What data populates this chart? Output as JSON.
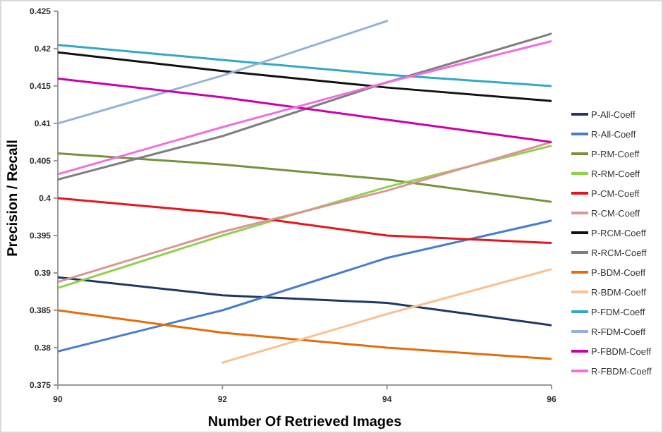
{
  "chart_data": {
    "type": "line",
    "xlabel": "Number Of Retrieved Images",
    "ylabel": "Precision / Recall",
    "x": [
      90,
      92,
      94,
      96
    ],
    "xlim": [
      90,
      96
    ],
    "xticks": [
      90,
      92,
      94,
      96
    ],
    "ylim": [
      0.375,
      0.425
    ],
    "yticks": [
      0.375,
      0.38,
      0.385,
      0.39,
      0.395,
      0.4,
      0.405,
      0.41,
      0.415,
      0.42,
      0.425
    ],
    "grid": false,
    "legend": "right",
    "marker": "none",
    "line_style": "solid",
    "series": [
      {
        "name": "P-All-Coeff",
        "color": "#1f3864",
        "values": [
          0.3894,
          0.387,
          0.386,
          0.383
        ]
      },
      {
        "name": "R-All-Coeff",
        "color": "#4a7ec8",
        "values": [
          0.3795,
          0.385,
          0.392,
          0.397
        ]
      },
      {
        "name": "P-RM-Coeff",
        "color": "#76923c",
        "values": [
          0.406,
          0.4045,
          0.4025,
          0.3995
        ]
      },
      {
        "name": "R-RM-Coeff",
        "color": "#92d050",
        "values": [
          0.388,
          0.395,
          0.4015,
          0.407
        ]
      },
      {
        "name": "P-CM-Coeff",
        "color": "#e8141b",
        "values": [
          0.4,
          0.398,
          0.395,
          0.394
        ]
      },
      {
        "name": "R-CM-Coeff",
        "color": "#d99694",
        "values": [
          0.3888,
          0.3955,
          0.401,
          0.4075
        ]
      },
      {
        "name": "P-RCM-Coeff",
        "color": "#111111",
        "values": [
          0.4195,
          0.417,
          0.4148,
          0.413
        ]
      },
      {
        "name": "R-RCM-Coeff",
        "color": "#7f7f7f",
        "values": [
          0.4025,
          0.4083,
          0.4155,
          0.422
        ]
      },
      {
        "name": "P-BDM-Coeff",
        "color": "#e46c0a",
        "values": [
          0.385,
          0.382,
          0.38,
          0.3785
        ]
      },
      {
        "name": "R-BDM-Coeff",
        "color": "#fac090",
        "values": [
          null,
          0.378,
          0.3845,
          0.3905
        ]
      },
      {
        "name": "P-FDM-Coeff",
        "color": "#31a9c4",
        "values": [
          0.4205,
          0.4185,
          0.4165,
          0.415
        ]
      },
      {
        "name": "R-FDM-Coeff",
        "color": "#95b3d7",
        "values": [
          0.41,
          0.4164,
          0.4237,
          null
        ]
      },
      {
        "name": "P-FBDM-Coeff",
        "color": "#cc00aa",
        "values": [
          0.416,
          0.4135,
          0.4105,
          0.4075
        ]
      },
      {
        "name": "R-FBDM-Coeff",
        "color": "#f070e0",
        "values": [
          0.4032,
          0.4095,
          0.4155,
          0.421
        ]
      }
    ]
  }
}
